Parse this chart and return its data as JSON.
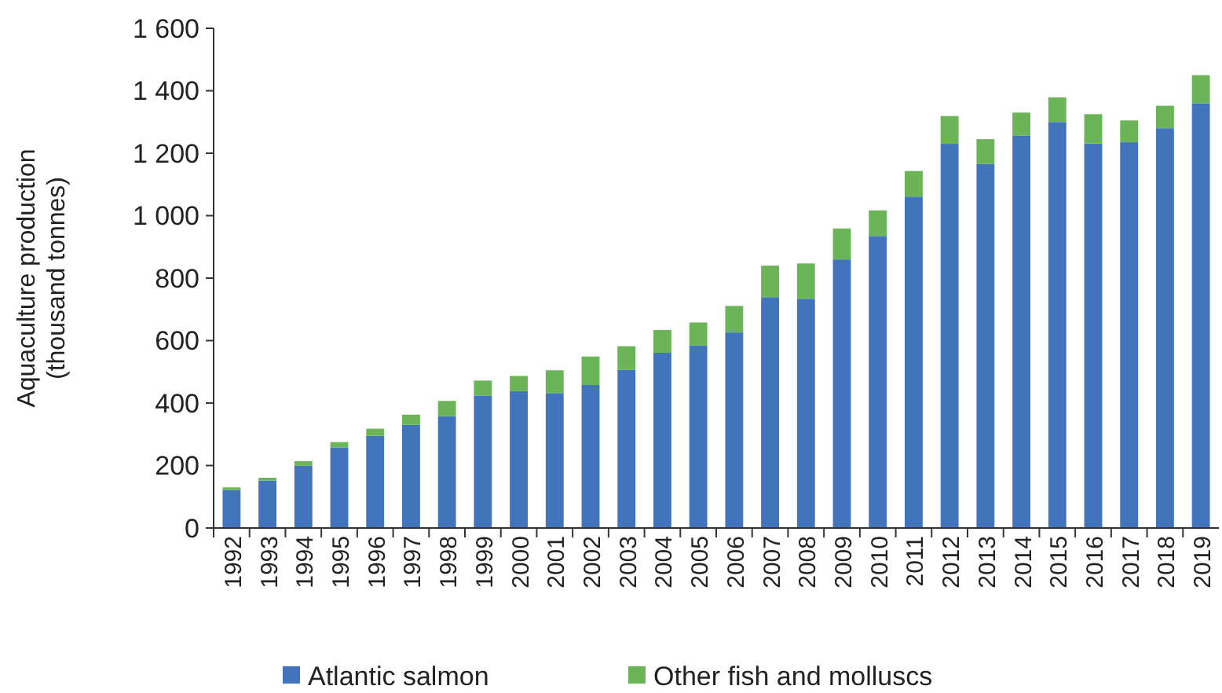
{
  "chart_data": {
    "type": "bar",
    "stacked": true,
    "ylabel": "Aquaculture production\n(thousand tonnes)",
    "categories": [
      "1992",
      "1993",
      "1994",
      "1995",
      "1996",
      "1997",
      "1998",
      "1999",
      "2000",
      "2001",
      "2002",
      "2003",
      "2004",
      "2005",
      "2006",
      "2007",
      "2008",
      "2009",
      "2010",
      "2011",
      "2012",
      "2013",
      "2014",
      "2015",
      "2016",
      "2017",
      "2018",
      "2019"
    ],
    "series": [
      {
        "name": "Atlantic salmon",
        "color": "#4174bb",
        "values": [
          122,
          152,
          199,
          258,
          295,
          330,
          358,
          423,
          438,
          432,
          458,
          507,
          561,
          584,
          626,
          739,
          734,
          860,
          935,
          1061,
          1230,
          1166,
          1257,
          1300,
          1231,
          1235,
          1280,
          1360
        ]
      },
      {
        "name": "Other fish and molluscs",
        "color": "#6bb457",
        "values": [
          8,
          9,
          15,
          17,
          23,
          33,
          49,
          49,
          49,
          73,
          91,
          75,
          73,
          74,
          85,
          101,
          113,
          99,
          82,
          82,
          89,
          79,
          73,
          79,
          94,
          70,
          72,
          90
        ]
      }
    ],
    "ylim": [
      0,
      1600
    ],
    "yticks": [
      {
        "value": 0,
        "label": "0"
      },
      {
        "value": 200,
        "label": "200"
      },
      {
        "value": 400,
        "label": "400"
      },
      {
        "value": 600,
        "label": "600"
      },
      {
        "value": 800,
        "label": "800"
      },
      {
        "value": 1000,
        "label": "1 000"
      },
      {
        "value": 1200,
        "label": "1 200"
      },
      {
        "value": 1400,
        "label": "1 400"
      },
      {
        "value": 1600,
        "label": "1 600"
      }
    ],
    "grid": false,
    "legend": "bottom"
  }
}
